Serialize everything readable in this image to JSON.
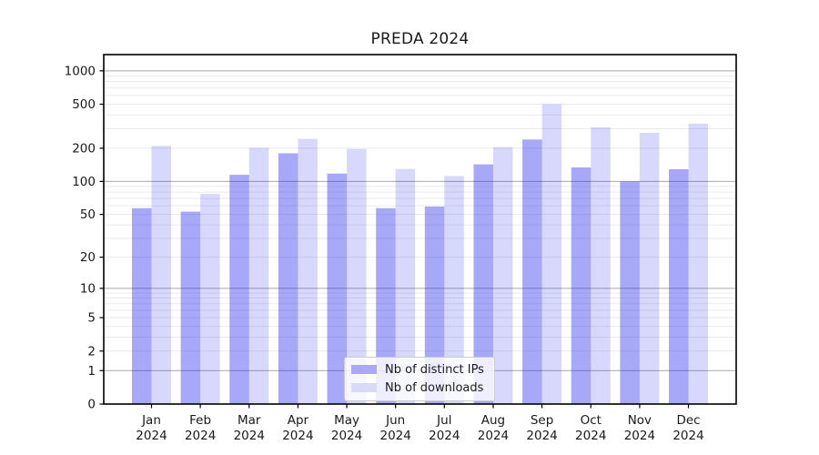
{
  "title": "PREDA 2024",
  "legend": {
    "items": [
      {
        "label": "Nb of distinct IPs"
      },
      {
        "label": "Nb of downloads"
      }
    ]
  },
  "chart_data": {
    "type": "bar",
    "title": "PREDA 2024",
    "categories": [
      "Jan 2024",
      "Feb 2024",
      "Mar 2024",
      "Apr 2024",
      "May 2024",
      "Jun 2024",
      "Jul 2024",
      "Aug 2024",
      "Sep 2024",
      "Oct 2024",
      "Nov 2024",
      "Dec 2024"
    ],
    "series": [
      {
        "name": "Nb of distinct IPs",
        "color": "#a9a9f4",
        "fill": "rgba(25,25,240,0.38)",
        "values": [
          57,
          53,
          115,
          180,
          118,
          57,
          59,
          143,
          240,
          134,
          100,
          129
        ]
      },
      {
        "name": "Nb of downloads",
        "color": "#d9d9f8",
        "fill": "rgba(25,25,240,0.17)",
        "values": [
          210,
          77,
          202,
          243,
          197,
          130,
          112,
          205,
          500,
          310,
          276,
          334
        ]
      }
    ],
    "xlabel": "",
    "ylabel": "",
    "y_scale": "log10(value+1)",
    "y_ticks": [
      1000,
      500,
      200,
      100,
      50,
      20,
      10,
      5,
      2,
      1,
      0
    ],
    "ylim": [
      0,
      1400
    ],
    "grid": {
      "on": true,
      "major_lines": [
        1,
        10,
        100,
        1000
      ],
      "minor_lines_per_decade": [
        2,
        3,
        4,
        5,
        6,
        7,
        8,
        9
      ]
    },
    "legend_position": "lower center"
  },
  "colors": {
    "background": "#ffffff",
    "bar_distinct_ips": "#a9a9f4",
    "bar_downloads": "#d9d9f8",
    "grid_major": "#a9a9a9",
    "grid_minor": "#eaeaea",
    "axis": "#000000",
    "text": "#1a1a1a"
  }
}
